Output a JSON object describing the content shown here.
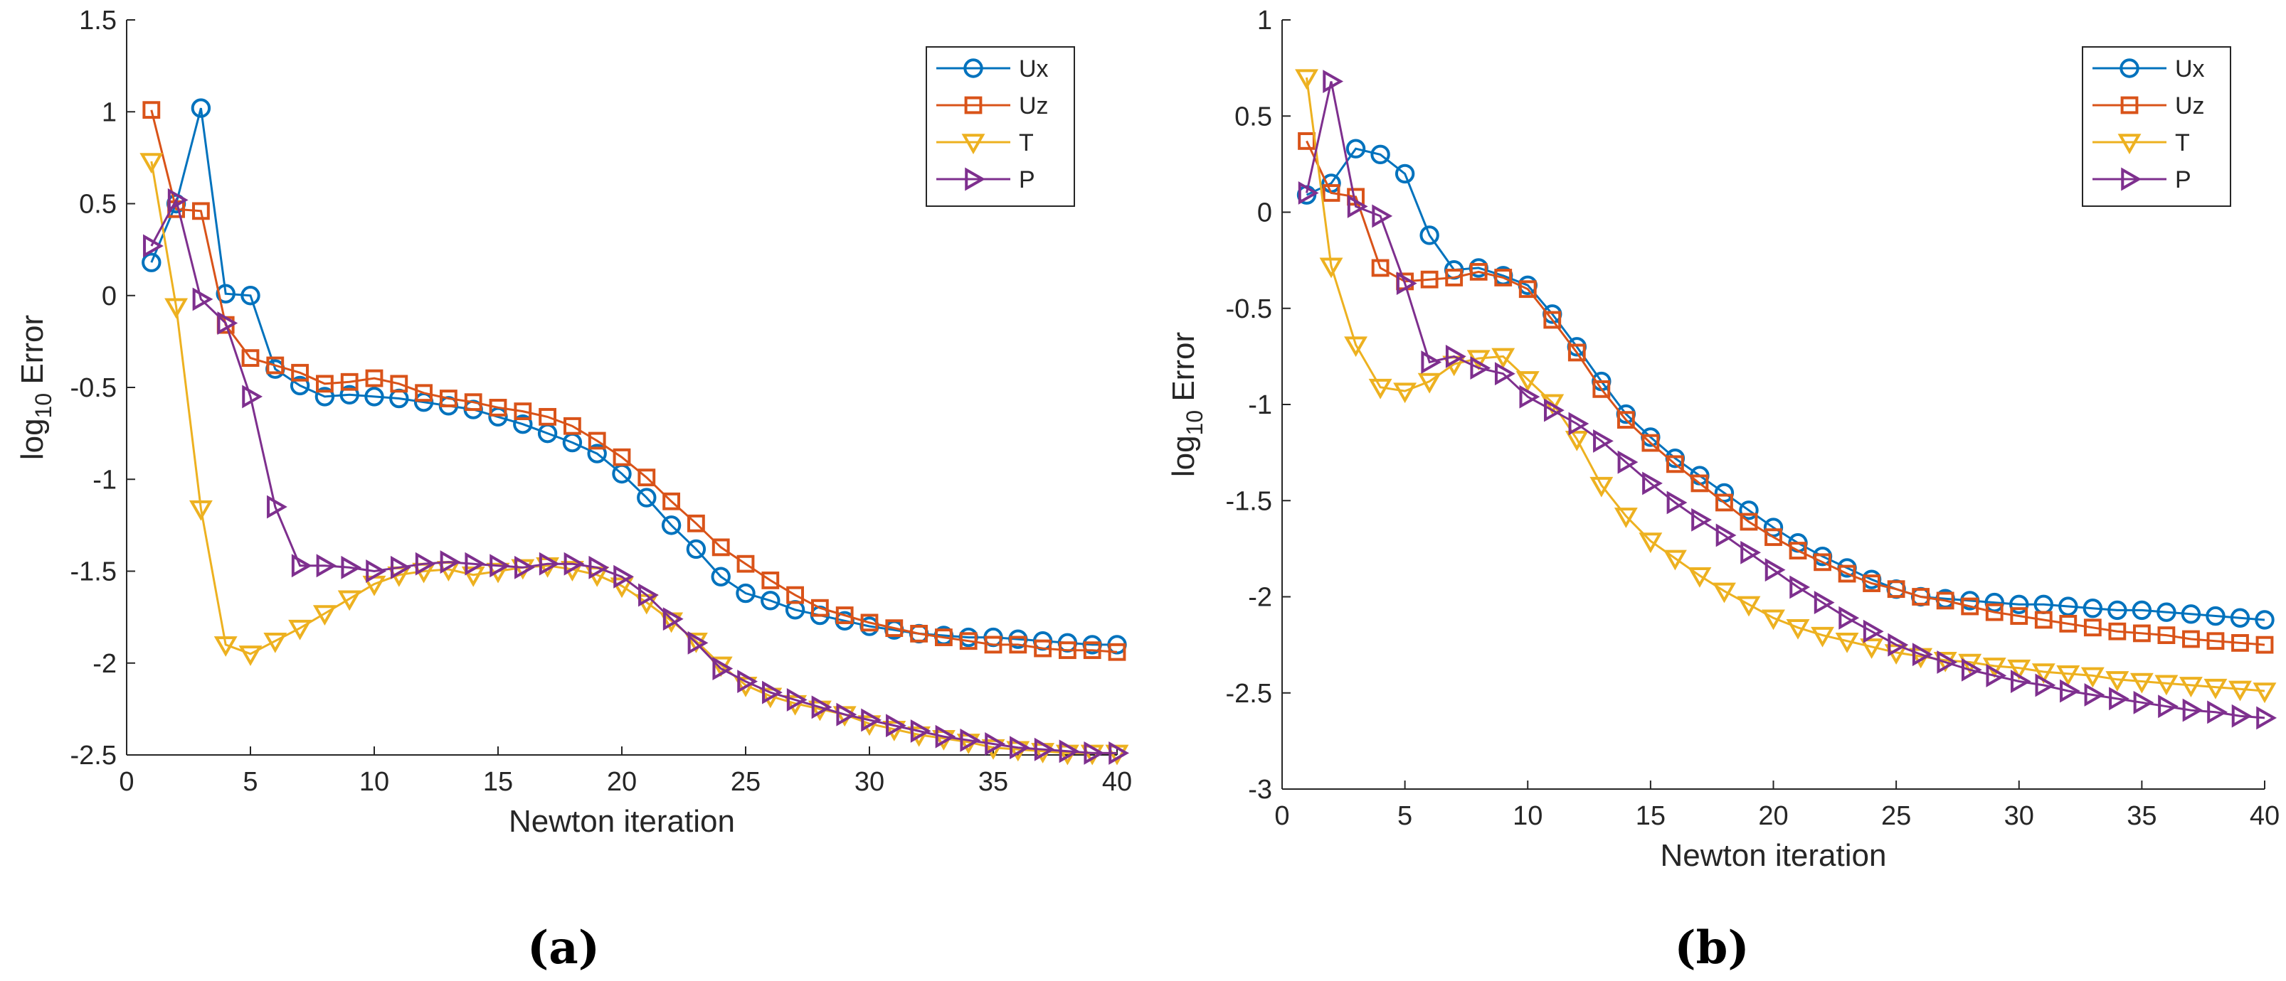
{
  "chart_data": [
    {
      "type": "line",
      "caption": "(a)",
      "xlabel": "Newton iteration",
      "ylabel_base": "log",
      "ylabel_sub": "10",
      "ylabel_rest": " Error",
      "xlim": [
        0,
        40
      ],
      "ylim": [
        -2.5,
        1.5
      ],
      "xticks": [
        0,
        5,
        10,
        15,
        20,
        25,
        30,
        35,
        40
      ],
      "yticks": [
        1.5,
        1,
        0.5,
        0,
        -0.5,
        -1,
        -1.5,
        -2,
        -2.5
      ],
      "xtick_labels": [
        "0",
        "5",
        "10",
        "15",
        "20",
        "25",
        "30",
        "35",
        "40"
      ],
      "ytick_labels": [
        "1.5",
        "1",
        "0.5",
        "0",
        "-0.5",
        "-1",
        "-1.5",
        "-2",
        "-2.5"
      ],
      "legend_position": "top-right",
      "x": [
        1,
        2,
        3,
        4,
        5,
        6,
        7,
        8,
        9,
        10,
        11,
        12,
        13,
        14,
        15,
        16,
        17,
        18,
        19,
        20,
        21,
        22,
        23,
        24,
        25,
        26,
        27,
        28,
        29,
        30,
        31,
        32,
        33,
        34,
        35,
        36,
        37,
        38,
        39,
        40
      ],
      "series": [
        {
          "name": "Ux",
          "color": "#0072BD",
          "marker": "circle",
          "values": [
            0.18,
            0.5,
            1.02,
            0.01,
            0.0,
            -0.4,
            -0.49,
            -0.55,
            -0.54,
            -0.55,
            -0.56,
            -0.58,
            -0.6,
            -0.62,
            -0.66,
            -0.7,
            -0.75,
            -0.8,
            -0.86,
            -0.97,
            -1.1,
            -1.25,
            -1.38,
            -1.53,
            -1.62,
            -1.66,
            -1.71,
            -1.74,
            -1.77,
            -1.8,
            -1.82,
            -1.84,
            -1.85,
            -1.86,
            -1.86,
            -1.87,
            -1.88,
            -1.89,
            -1.9,
            -1.9
          ]
        },
        {
          "name": "Uz",
          "color": "#D95319",
          "marker": "square",
          "values": [
            1.01,
            0.47,
            0.46,
            -0.16,
            -0.34,
            -0.38,
            -0.42,
            -0.48,
            -0.47,
            -0.45,
            -0.48,
            -0.53,
            -0.56,
            -0.58,
            -0.61,
            -0.63,
            -0.66,
            -0.71,
            -0.79,
            -0.88,
            -0.99,
            -1.12,
            -1.24,
            -1.37,
            -1.46,
            -1.55,
            -1.63,
            -1.7,
            -1.74,
            -1.78,
            -1.81,
            -1.84,
            -1.86,
            -1.88,
            -1.9,
            -1.9,
            -1.92,
            -1.93,
            -1.93,
            -1.94
          ]
        },
        {
          "name": "T",
          "color": "#EDB120",
          "marker": "triangle-down",
          "values": [
            0.73,
            -0.06,
            -1.16,
            -1.9,
            -1.95,
            -1.88,
            -1.81,
            -1.73,
            -1.65,
            -1.57,
            -1.52,
            -1.5,
            -1.49,
            -1.52,
            -1.5,
            -1.48,
            -1.47,
            -1.49,
            -1.52,
            -1.58,
            -1.67,
            -1.77,
            -1.88,
            -2.01,
            -2.12,
            -2.18,
            -2.22,
            -2.25,
            -2.28,
            -2.33,
            -2.36,
            -2.39,
            -2.41,
            -2.43,
            -2.46,
            -2.47,
            -2.48,
            -2.49,
            -2.49,
            -2.49
          ]
        },
        {
          "name": "P",
          "color": "#7E2F8E",
          "marker": "triangle-right",
          "values": [
            0.27,
            0.52,
            -0.02,
            -0.15,
            -0.55,
            -1.15,
            -1.47,
            -1.47,
            -1.48,
            -1.5,
            -1.48,
            -1.46,
            -1.45,
            -1.46,
            -1.47,
            -1.48,
            -1.46,
            -1.46,
            -1.48,
            -1.53,
            -1.63,
            -1.76,
            -1.89,
            -2.03,
            -2.1,
            -2.16,
            -2.2,
            -2.24,
            -2.28,
            -2.31,
            -2.34,
            -2.37,
            -2.4,
            -2.42,
            -2.44,
            -2.46,
            -2.47,
            -2.48,
            -2.49,
            -2.49
          ]
        }
      ]
    },
    {
      "type": "line",
      "caption": "(b)",
      "xlabel": "Newton iteration",
      "ylabel_base": "log",
      "ylabel_sub": "10",
      "ylabel_rest": " Error",
      "xlim": [
        0,
        40
      ],
      "ylim": [
        -3,
        1
      ],
      "xticks": [
        0,
        5,
        10,
        15,
        20,
        25,
        30,
        35,
        40
      ],
      "yticks": [
        1,
        0.5,
        0,
        -0.5,
        -1,
        -1.5,
        -2,
        -2.5,
        -3
      ],
      "xtick_labels": [
        "0",
        "5",
        "10",
        "15",
        "20",
        "25",
        "30",
        "35",
        "40"
      ],
      "ytick_labels": [
        "1",
        "0.5",
        "0",
        "-0.5",
        "-1",
        "-1.5",
        "-2",
        "-2.5",
        "-3"
      ],
      "legend_position": "top-right",
      "x": [
        1,
        2,
        3,
        4,
        5,
        6,
        7,
        8,
        9,
        10,
        11,
        12,
        13,
        14,
        15,
        16,
        17,
        18,
        19,
        20,
        21,
        22,
        23,
        24,
        25,
        26,
        27,
        28,
        29,
        30,
        31,
        32,
        33,
        34,
        35,
        36,
        37,
        38,
        39,
        40
      ],
      "series": [
        {
          "name": "Ux",
          "color": "#0072BD",
          "marker": "circle",
          "values": [
            0.09,
            0.15,
            0.33,
            0.3,
            0.2,
            -0.12,
            -0.3,
            -0.29,
            -0.33,
            -0.38,
            -0.53,
            -0.7,
            -0.88,
            -1.05,
            -1.17,
            -1.28,
            -1.37,
            -1.46,
            -1.55,
            -1.64,
            -1.72,
            -1.79,
            -1.85,
            -1.91,
            -1.96,
            -2.0,
            -2.01,
            -2.02,
            -2.03,
            -2.04,
            -2.04,
            -2.05,
            -2.06,
            -2.07,
            -2.07,
            -2.08,
            -2.09,
            -2.1,
            -2.11,
            -2.12
          ]
        },
        {
          "name": "Uz",
          "color": "#D95319",
          "marker": "square",
          "values": [
            0.37,
            0.1,
            0.08,
            -0.29,
            -0.36,
            -0.35,
            -0.34,
            -0.31,
            -0.34,
            -0.4,
            -0.56,
            -0.73,
            -0.92,
            -1.08,
            -1.2,
            -1.31,
            -1.41,
            -1.51,
            -1.61,
            -1.69,
            -1.76,
            -1.82,
            -1.88,
            -1.93,
            -1.96,
            -2.0,
            -2.02,
            -2.05,
            -2.08,
            -2.1,
            -2.12,
            -2.14,
            -2.16,
            -2.18,
            -2.19,
            -2.2,
            -2.22,
            -2.23,
            -2.24,
            -2.25
          ]
        },
        {
          "name": "T",
          "color": "#EDB120",
          "marker": "triangle-down",
          "values": [
            0.7,
            -0.28,
            -0.69,
            -0.91,
            -0.93,
            -0.88,
            -0.79,
            -0.76,
            -0.75,
            -0.87,
            -0.99,
            -1.18,
            -1.42,
            -1.58,
            -1.71,
            -1.8,
            -1.89,
            -1.97,
            -2.04,
            -2.11,
            -2.16,
            -2.2,
            -2.23,
            -2.26,
            -2.29,
            -2.31,
            -2.33,
            -2.34,
            -2.36,
            -2.37,
            -2.39,
            -2.4,
            -2.41,
            -2.43,
            -2.44,
            -2.45,
            -2.46,
            -2.47,
            -2.48,
            -2.49
          ]
        },
        {
          "name": "P",
          "color": "#7E2F8E",
          "marker": "triangle-right",
          "values": [
            0.1,
            0.68,
            0.03,
            -0.02,
            -0.37,
            -0.78,
            -0.75,
            -0.81,
            -0.84,
            -0.96,
            -1.03,
            -1.1,
            -1.19,
            -1.3,
            -1.41,
            -1.51,
            -1.6,
            -1.68,
            -1.77,
            -1.86,
            -1.95,
            -2.03,
            -2.11,
            -2.18,
            -2.25,
            -2.3,
            -2.34,
            -2.38,
            -2.41,
            -2.44,
            -2.46,
            -2.49,
            -2.51,
            -2.53,
            -2.55,
            -2.57,
            -2.59,
            -2.6,
            -2.62,
            -2.63
          ]
        }
      ]
    }
  ]
}
